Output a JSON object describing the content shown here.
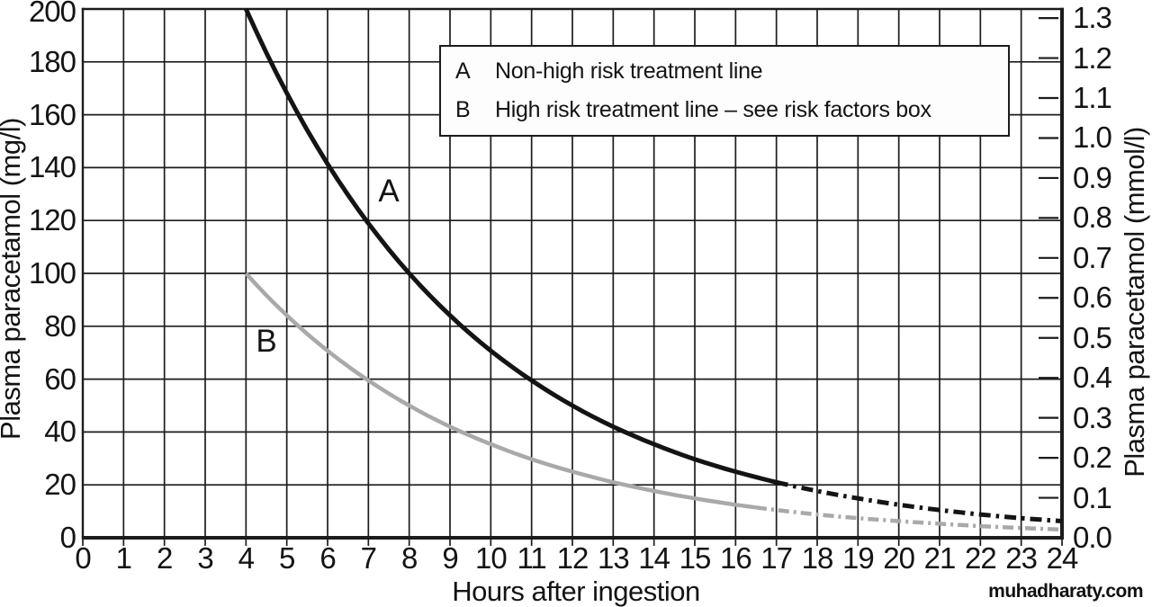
{
  "page": {
    "background": "#ffffff",
    "watermark": "muhadharaty.com"
  },
  "chart_data": {
    "type": "line",
    "title": "",
    "xlabel": "Hours after ingestion",
    "ylabel_left": "Plasma paracetamol (mg/l)",
    "ylabel_right": "Plasma paracetamol (mmol/l)",
    "xlim": [
      0,
      24
    ],
    "ylim_left_mg": [
      0,
      200
    ],
    "ylim_right_mmol": [
      0,
      1.323
    ],
    "mg_per_mmol": 151.2,
    "grid": true,
    "x_ticks": [
      0,
      1,
      2,
      3,
      4,
      5,
      6,
      7,
      8,
      9,
      10,
      11,
      12,
      13,
      14,
      15,
      16,
      17,
      18,
      19,
      20,
      21,
      22,
      23,
      24
    ],
    "y_ticks_left_mg": [
      0,
      20,
      40,
      60,
      80,
      100,
      120,
      140,
      160,
      180,
      200
    ],
    "y_ticks_right_mmol": [
      "0.0",
      "0.1",
      "0.2",
      "0.3",
      "0.4",
      "0.5",
      "0.6",
      "0.7",
      "0.8",
      "0.9",
      "1.0",
      "1.1",
      "1.2",
      "1.3"
    ],
    "grid_color": "#1c1c1c",
    "series": [
      {
        "key": "A",
        "name": "Non-high risk treatment line",
        "color": "#141414",
        "line_width": 5,
        "solid_until_hour": 17,
        "dash_style_after": "dash-dot",
        "x": [
          4,
          5,
          6,
          7,
          8,
          9,
          10,
          11,
          12,
          13,
          14,
          15,
          16,
          17,
          18,
          19,
          20,
          21,
          22,
          23,
          24
        ],
        "values_mg": [
          200,
          168.2,
          141.4,
          118.9,
          100,
          84.1,
          70.7,
          59.5,
          50,
          42,
          35.4,
          29.7,
          25,
          21,
          17.7,
          14.9,
          12.5,
          10.5,
          8.8,
          7.4,
          6.3
        ]
      },
      {
        "key": "B",
        "name": "High risk treatment line – see risk factors box",
        "color": "#a9a9a9",
        "line_width": 4.5,
        "solid_until_hour": 16.5,
        "dash_style_after": "dash-dot",
        "x": [
          4,
          5,
          6,
          7,
          8,
          9,
          10,
          11,
          12,
          13,
          14,
          15,
          16,
          17,
          18,
          19,
          20,
          21,
          22,
          23,
          24
        ],
        "values_mg": [
          100,
          84.1,
          70.7,
          59.5,
          50,
          42,
          35.4,
          29.7,
          25,
          21,
          17.7,
          14.9,
          12.5,
          10.5,
          8.8,
          7.4,
          6.3,
          5.3,
          4.4,
          3.7,
          3.1
        ]
      }
    ],
    "legend": {
      "position": "top-right",
      "entries": [
        {
          "key": "A",
          "label": "Non-high risk treatment line"
        },
        {
          "key": "B",
          "label": "High risk treatment line – see risk factors box"
        }
      ]
    },
    "annotations": [
      {
        "text": "A",
        "hour": 7.5,
        "mg": 131
      },
      {
        "text": "B",
        "hour": 4.5,
        "mg": 74
      }
    ]
  }
}
